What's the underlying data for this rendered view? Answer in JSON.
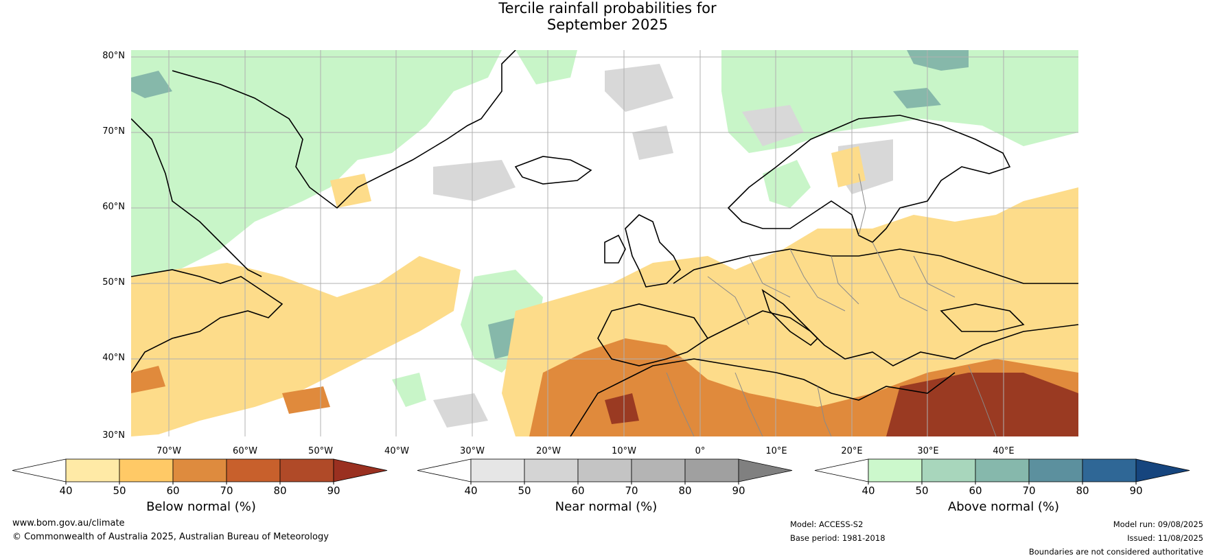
{
  "title": {
    "line1": "Tercile rainfall probabilities for",
    "line2": "September 2025"
  },
  "map": {
    "lat_labels": [
      "80°N",
      "70°N",
      "60°N",
      "50°N",
      "40°N",
      "30°N"
    ],
    "lon_labels": [
      "70°W",
      "60°W",
      "50°W",
      "40°W",
      "30°W",
      "20°W",
      "10°W",
      "0°",
      "10°E",
      "20°E",
      "30°E",
      "40°E"
    ],
    "colors": {
      "below": "#fddc8a",
      "below_strong": "#e08a3c",
      "below_max": "#9a3a22",
      "near": "#d8d8d8",
      "above": "#c8f5c8",
      "above_strong": "#86b8aa",
      "land_line": "#000000",
      "border_line": "#8a8a8a",
      "grid": "#b0b0b0"
    }
  },
  "colorbars": [
    {
      "name": "below",
      "ticks": [
        "40",
        "50",
        "60",
        "70",
        "80",
        "90"
      ],
      "colors": [
        "#ffffff",
        "#ffeaa6",
        "#ffc966",
        "#de8b3e",
        "#c8602c",
        "#b04a28",
        "#9a3020"
      ],
      "label": "Below normal (%)"
    },
    {
      "name": "near",
      "ticks": [
        "40",
        "50",
        "60",
        "70",
        "80",
        "90"
      ],
      "colors": [
        "#ffffff",
        "#e6e6e6",
        "#d4d4d4",
        "#c4c4c4",
        "#b4b4b4",
        "#a0a0a0",
        "#808080"
      ],
      "label": "Near normal (%)"
    },
    {
      "name": "above",
      "ticks": [
        "40",
        "50",
        "60",
        "70",
        "80",
        "90"
      ],
      "colors": [
        "#ffffff",
        "#ccf8cc",
        "#a8d6bc",
        "#86b8ac",
        "#5c909e",
        "#2f6796",
        "#16457e"
      ],
      "label": "Above normal (%)"
    }
  ],
  "footer": {
    "website": "www.bom.gov.au/climate",
    "copyright": "© Commonwealth of Australia 2025, Australian Bureau of Meteorology",
    "model": "Model: ACCESS-S2",
    "base_period": "Base period: 1981-2018",
    "model_run": "Model run: 09/08/2025",
    "issued": "Issued: 11/08/2025",
    "disclaimer": "Boundaries are not considered authoritative"
  }
}
